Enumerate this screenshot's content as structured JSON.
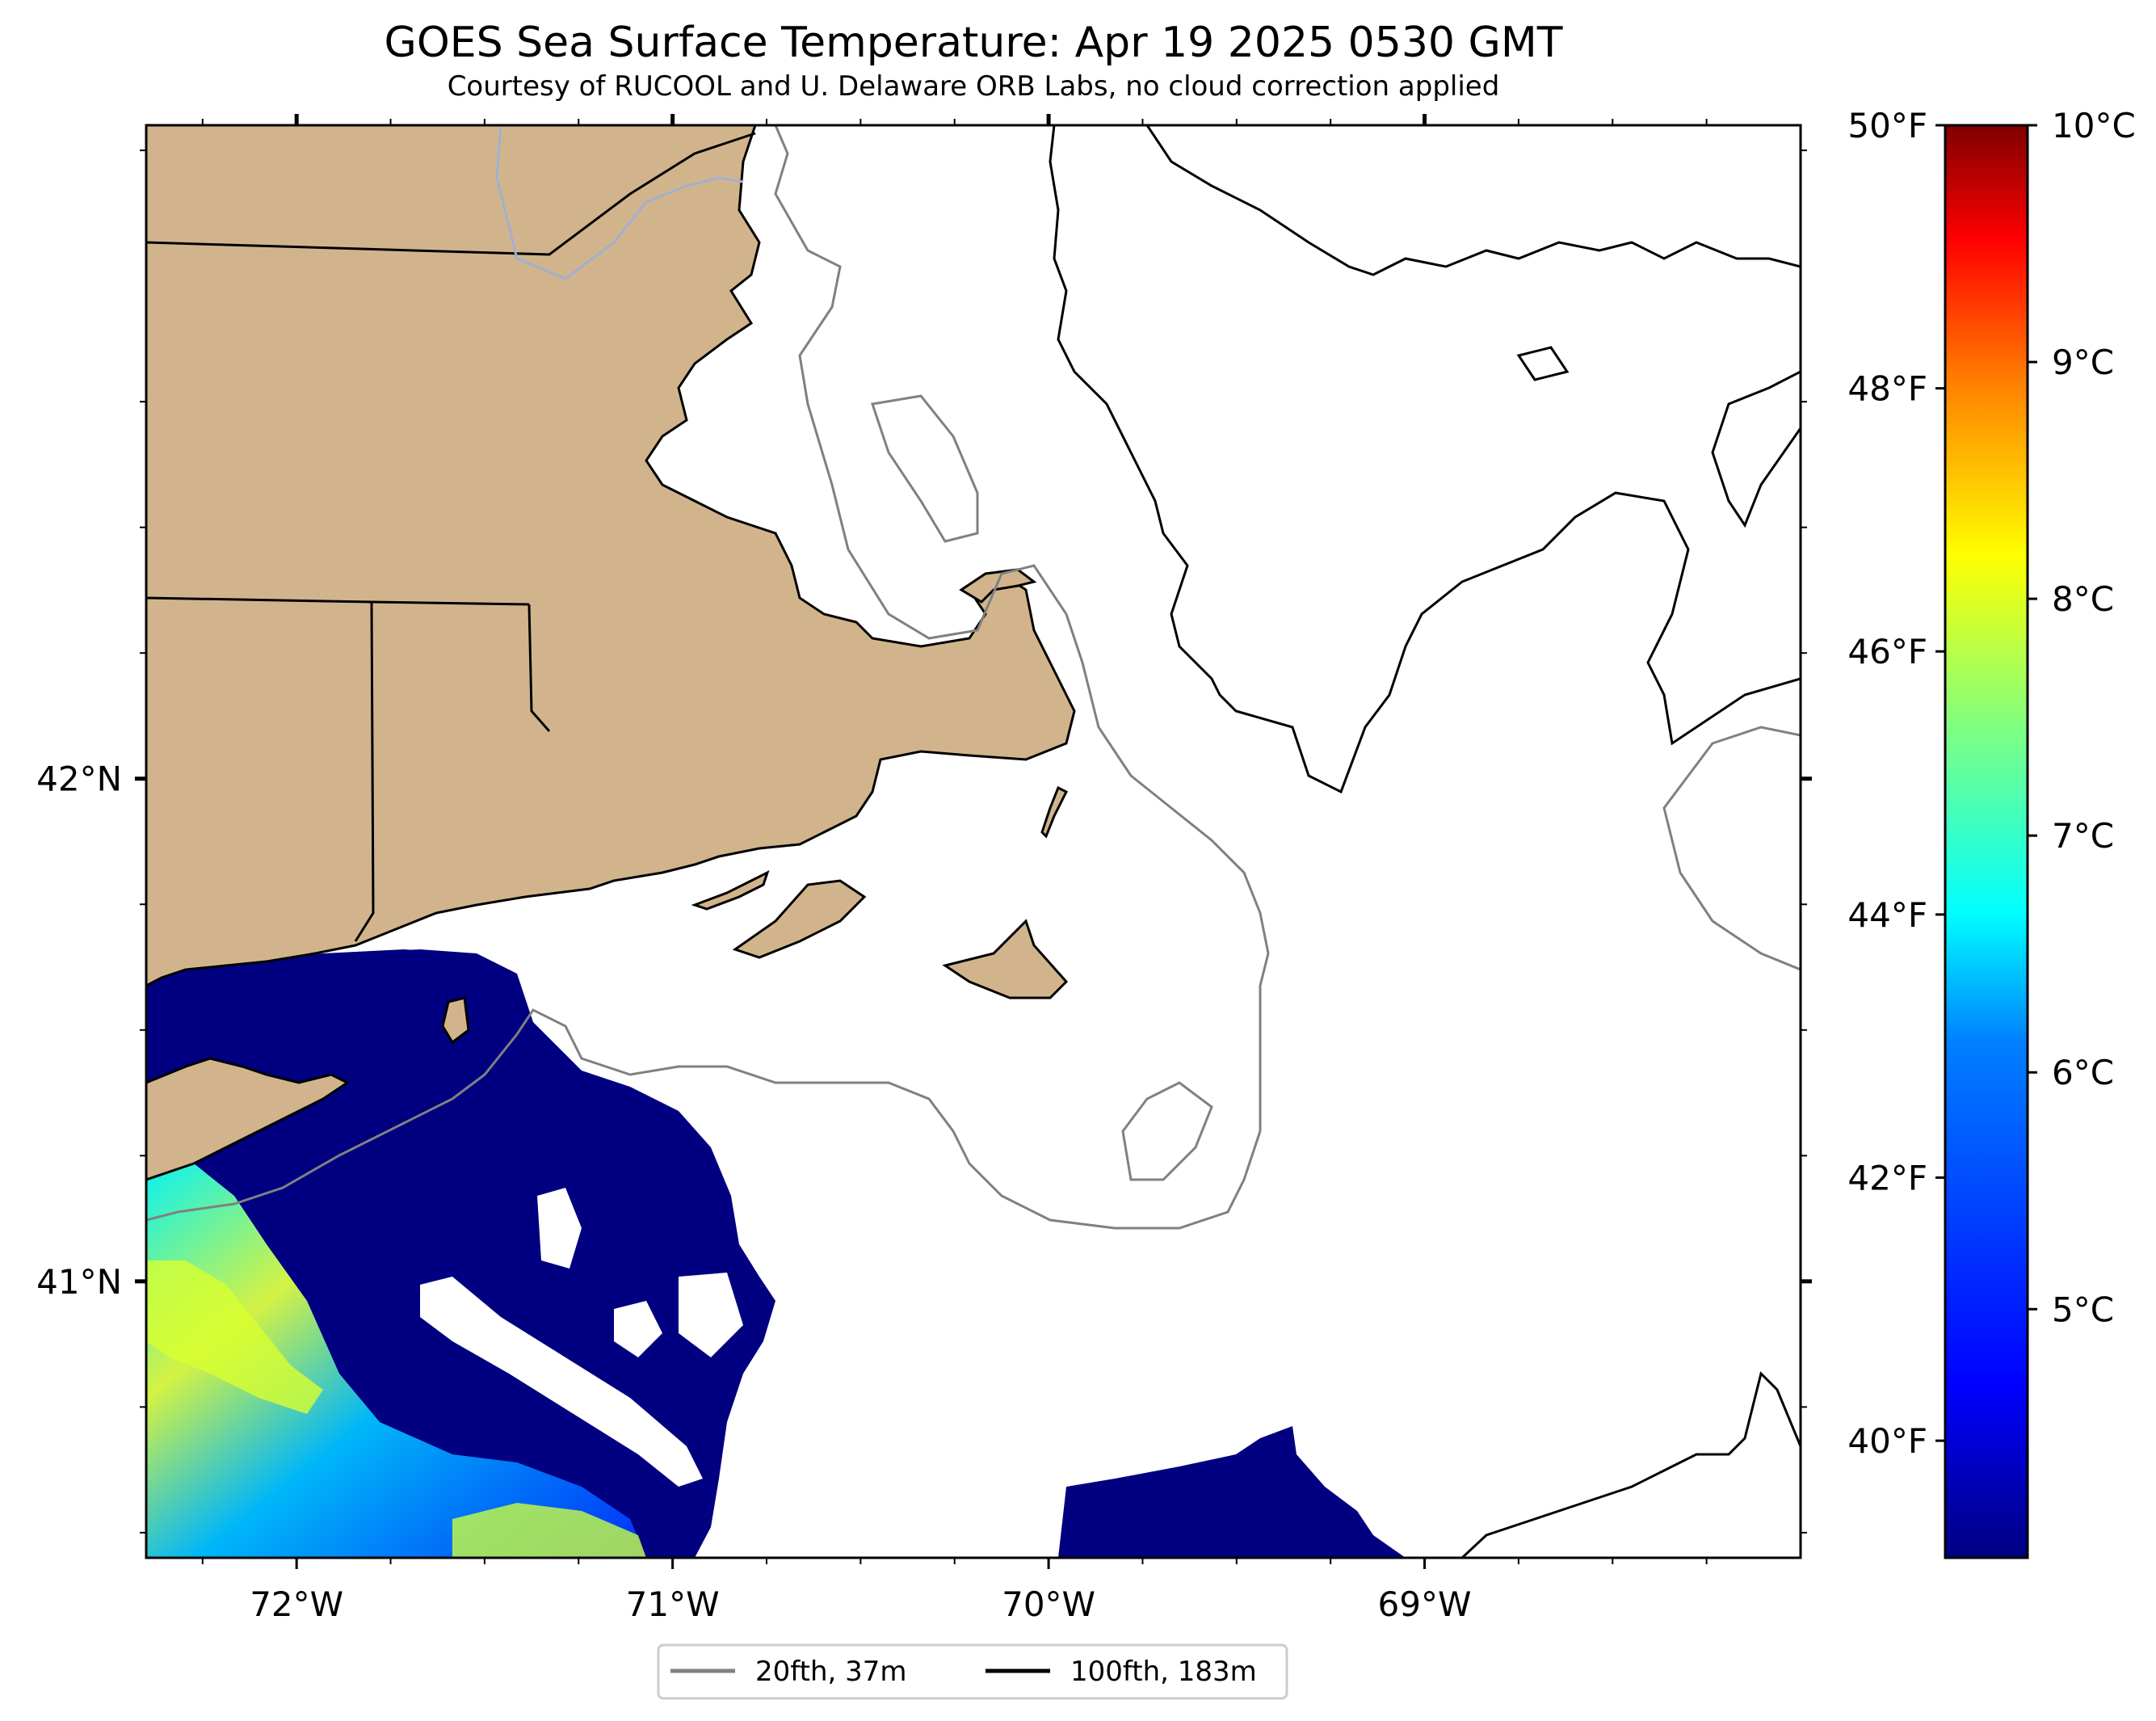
{
  "chart_data": {
    "type": "heatmap",
    "title": "GOES Sea Surface Temperature: Apr 19 2025 0530 GMT",
    "subtitle": "Courtesy of RUCOOL and U. Delaware ORB Labs, no cloud correction applied",
    "x_axis": {
      "range": [
        -72.4,
        -68.0
      ],
      "ticks": [
        -72,
        -71,
        -70,
        -69
      ],
      "tick_labels": [
        "72°W",
        "71°W",
        "70°W",
        "69°W"
      ]
    },
    "y_axis": {
      "range": [
        40.45,
        43.3
      ],
      "ticks": [
        42,
        41
      ],
      "tick_labels": [
        "42°N",
        "41°N"
      ]
    },
    "colorbar_fahrenheit": {
      "tick_labels": [
        "50°F",
        "48°F",
        "46°F",
        "44°F",
        "42°F",
        "40°F"
      ],
      "values": [
        50,
        48,
        46,
        44,
        42,
        40
      ]
    },
    "colorbar_celsius": {
      "tick_labels": [
        "10°C",
        "9°C",
        "8°C",
        "7°C",
        "6°C",
        "5°C"
      ],
      "values": [
        10,
        9,
        8,
        7,
        6,
        5
      ]
    },
    "colorbar_range_c": [
      3.95,
      10
    ],
    "colormap": [
      "#000080",
      "#0000ff",
      "#0080ff",
      "#00ffff",
      "#80ff80",
      "#ffff00",
      "#ff8000",
      "#ff0000",
      "#800000"
    ],
    "land_color": "#d2b48c",
    "legend": {
      "position": "bottom-center",
      "entries": [
        {
          "label": "20fth, 37m",
          "color": "#808080"
        },
        {
          "label": "100fth, 183m",
          "color": "#000000"
        }
      ]
    }
  }
}
